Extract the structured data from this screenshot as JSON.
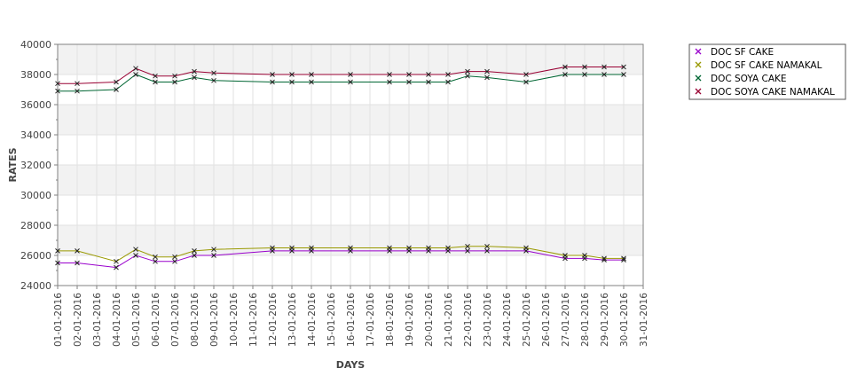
{
  "chart_data": {
    "type": "line",
    "xlabel": "DAYS",
    "ylabel": "RATES",
    "ylim": [
      24000,
      40000
    ],
    "y_ticks": [
      "24000",
      "26000",
      "28000",
      "30000",
      "32000",
      "34000",
      "36000",
      "38000",
      "40000"
    ],
    "grid": true,
    "legend_position": "right",
    "categories": [
      "01-01-2016",
      "02-01-2016",
      "03-01-2016",
      "04-01-2016",
      "05-01-2016",
      "06-01-2016",
      "07-01-2016",
      "08-01-2016",
      "09-01-2016",
      "10-01-2016",
      "11-01-2016",
      "12-01-2016",
      "13-01-2016",
      "14-01-2016",
      "15-01-2016",
      "16-01-2016",
      "17-01-2016",
      "18-01-2016",
      "19-01-2016",
      "20-01-2016",
      "21-01-2016",
      "22-01-2016",
      "23-01-2016",
      "24-01-2016",
      "25-01-2016",
      "26-01-2016",
      "27-01-2016",
      "28-01-2016",
      "29-01-2016",
      "30-01-2016",
      "31-01-2016"
    ],
    "series": [
      {
        "name": "DOC SF CAKE",
        "color": "#9900cc",
        "points": [
          [
            "01-01-2016",
            25500
          ],
          [
            "02-01-2016",
            25500
          ],
          [
            "04-01-2016",
            25200
          ],
          [
            "05-01-2016",
            26000
          ],
          [
            "06-01-2016",
            25600
          ],
          [
            "07-01-2016",
            25600
          ],
          [
            "08-01-2016",
            26000
          ],
          [
            "09-01-2016",
            26000
          ],
          [
            "12-01-2016",
            26300
          ],
          [
            "13-01-2016",
            26300
          ],
          [
            "14-01-2016",
            26300
          ],
          [
            "16-01-2016",
            26300
          ],
          [
            "18-01-2016",
            26300
          ],
          [
            "19-01-2016",
            26300
          ],
          [
            "20-01-2016",
            26300
          ],
          [
            "21-01-2016",
            26300
          ],
          [
            "22-01-2016",
            26300
          ],
          [
            "23-01-2016",
            26300
          ],
          [
            "25-01-2016",
            26300
          ],
          [
            "27-01-2016",
            25800
          ],
          [
            "28-01-2016",
            25800
          ],
          [
            "29-01-2016",
            25700
          ],
          [
            "30-01-2016",
            25700
          ]
        ]
      },
      {
        "name": "DOC SF CAKE NAMAKAL",
        "color": "#999900",
        "points": [
          [
            "01-01-2016",
            26300
          ],
          [
            "02-01-2016",
            26300
          ],
          [
            "04-01-2016",
            25600
          ],
          [
            "05-01-2016",
            26400
          ],
          [
            "06-01-2016",
            25900
          ],
          [
            "07-01-2016",
            25900
          ],
          [
            "08-01-2016",
            26300
          ],
          [
            "09-01-2016",
            26400
          ],
          [
            "12-01-2016",
            26500
          ],
          [
            "13-01-2016",
            26500
          ],
          [
            "14-01-2016",
            26500
          ],
          [
            "16-01-2016",
            26500
          ],
          [
            "18-01-2016",
            26500
          ],
          [
            "19-01-2016",
            26500
          ],
          [
            "20-01-2016",
            26500
          ],
          [
            "21-01-2016",
            26500
          ],
          [
            "22-01-2016",
            26600
          ],
          [
            "23-01-2016",
            26600
          ],
          [
            "25-01-2016",
            26500
          ],
          [
            "27-01-2016",
            26000
          ],
          [
            "28-01-2016",
            26000
          ],
          [
            "29-01-2016",
            25800
          ],
          [
            "30-01-2016",
            25800
          ]
        ]
      },
      {
        "name": "DOC SOYA CAKE",
        "color": "#006633",
        "points": [
          [
            "01-01-2016",
            36900
          ],
          [
            "02-01-2016",
            36900
          ],
          [
            "04-01-2016",
            37000
          ],
          [
            "05-01-2016",
            38000
          ],
          [
            "06-01-2016",
            37500
          ],
          [
            "07-01-2016",
            37500
          ],
          [
            "08-01-2016",
            37800
          ],
          [
            "09-01-2016",
            37600
          ],
          [
            "12-01-2016",
            37500
          ],
          [
            "13-01-2016",
            37500
          ],
          [
            "14-01-2016",
            37500
          ],
          [
            "16-01-2016",
            37500
          ],
          [
            "18-01-2016",
            37500
          ],
          [
            "19-01-2016",
            37500
          ],
          [
            "20-01-2016",
            37500
          ],
          [
            "21-01-2016",
            37500
          ],
          [
            "22-01-2016",
            37900
          ],
          [
            "23-01-2016",
            37800
          ],
          [
            "25-01-2016",
            37500
          ],
          [
            "27-01-2016",
            38000
          ],
          [
            "28-01-2016",
            38000
          ],
          [
            "29-01-2016",
            38000
          ],
          [
            "30-01-2016",
            38000
          ]
        ]
      },
      {
        "name": "DOC SOYA CAKE NAMAKAL",
        "color": "#990033",
        "points": [
          [
            "01-01-2016",
            37400
          ],
          [
            "02-01-2016",
            37400
          ],
          [
            "04-01-2016",
            37500
          ],
          [
            "05-01-2016",
            38400
          ],
          [
            "06-01-2016",
            37900
          ],
          [
            "07-01-2016",
            37900
          ],
          [
            "08-01-2016",
            38200
          ],
          [
            "09-01-2016",
            38100
          ],
          [
            "12-01-2016",
            38000
          ],
          [
            "13-01-2016",
            38000
          ],
          [
            "14-01-2016",
            38000
          ],
          [
            "16-01-2016",
            38000
          ],
          [
            "18-01-2016",
            38000
          ],
          [
            "19-01-2016",
            38000
          ],
          [
            "20-01-2016",
            38000
          ],
          [
            "21-01-2016",
            38000
          ],
          [
            "22-01-2016",
            38200
          ],
          [
            "23-01-2016",
            38200
          ],
          [
            "25-01-2016",
            38000
          ],
          [
            "27-01-2016",
            38500
          ],
          [
            "28-01-2016",
            38500
          ],
          [
            "29-01-2016",
            38500
          ],
          [
            "30-01-2016",
            38500
          ]
        ]
      }
    ]
  }
}
